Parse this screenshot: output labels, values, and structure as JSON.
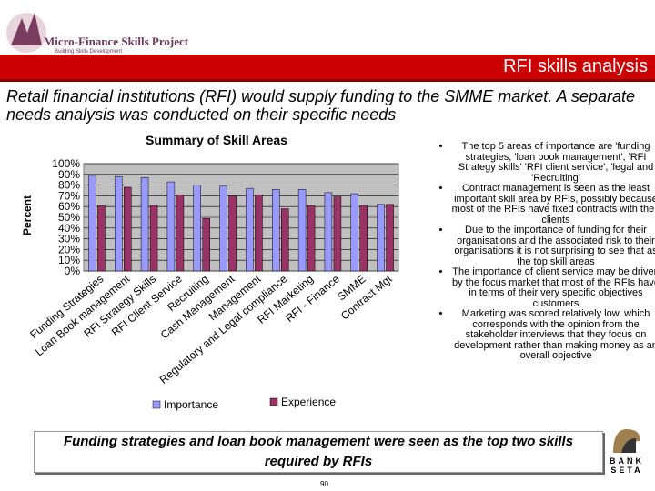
{
  "logo": {
    "name": "Micro-Finance Skills Project",
    "tagline": "Building Skills Development"
  },
  "header": {
    "title": "RFI skills analysis",
    "intro": "Retail financial institutions (RFI) would supply funding to the SMME market. A separate needs analysis was conducted on their specific needs"
  },
  "chart_data": {
    "type": "bar",
    "title": "Summary of Skill Areas",
    "y_label": "Percent",
    "categories": [
      "Funding Strategies",
      "Loan Book management",
      "RFI Strategy Skills",
      "RFI Client Service",
      "Recruiting",
      "Cash Management",
      "Management",
      "Regulatory and Legal compliance",
      "RFI Marketing",
      "RFI - Finance",
      "SMME",
      "Contract Mgt"
    ],
    "series": [
      {
        "name": "Importance",
        "color": "#9999ff",
        "values": [
          89,
          88,
          87,
          83,
          80,
          79,
          77,
          76,
          76,
          73,
          72,
          62
        ]
      },
      {
        "name": "Experience",
        "color": "#993366",
        "values": [
          61,
          78,
          61,
          71,
          49,
          70,
          71,
          58,
          61,
          69,
          61,
          62
        ]
      }
    ],
    "ylim": [
      0,
      100
    ],
    "yticks": [
      {
        "value": 0,
        "label": "0%"
      },
      {
        "value": 10,
        "label": "10%"
      },
      {
        "value": 20,
        "label": "20%"
      },
      {
        "value": 30,
        "label": "30%"
      },
      {
        "value": 40,
        "label": "40%"
      },
      {
        "value": 50,
        "label": "50%"
      },
      {
        "value": 60,
        "label": "60%"
      },
      {
        "value": 70,
        "label": "70%"
      },
      {
        "value": 80,
        "label": "80%"
      },
      {
        "value": 90,
        "label": "90%"
      },
      {
        "value": 100,
        "label": "100%"
      }
    ],
    "grid": true
  },
  "bullets": [
    "The top 5 areas of importance are 'funding strategies, 'loan book management', 'RFI Strategy skills' 'RFI client service', 'legal and 'Recruiting'",
    "Contract management is seen as the least important skill area by RFIs, possibly because most of the RFIs have fixed contracts with their clients",
    "Due to the importance of funding for their organisations and the associated risk to their organisations it is not surprising to see that as the top skill areas",
    "The importance of client service may be driven by the focus market that most of the RFIs have in terms of their very specific objectives customers",
    "Marketing was scored relatively low, which corresponds with the opinion from the stakeholder interviews that they focus on development rather than making money as an overall objective"
  ],
  "caption": "Funding strategies and loan book management were seen as the top two skills required by RFIs",
  "page_number": "90",
  "bank_logo": {
    "line1": "BANK",
    "line2": "SETA"
  }
}
